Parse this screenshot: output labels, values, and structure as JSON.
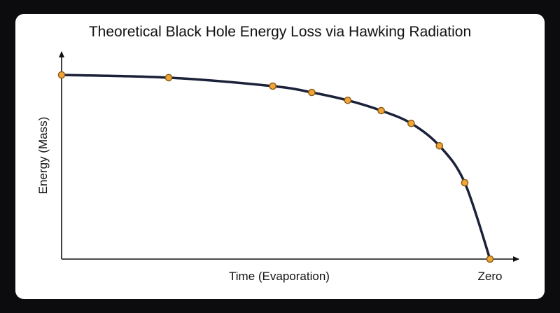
{
  "chart_data": {
    "type": "line",
    "title": "Theoretical Black Hole Energy Loss via Hawking Radiation",
    "xlabel": "Time (Evaporation)",
    "ylabel": "Energy (Mass)",
    "x_end_label": "Zero",
    "x_ticks": false,
    "y_ticks": false,
    "grid": false,
    "xlim": [
      0,
      100
    ],
    "ylim": [
      0,
      100
    ],
    "series": [
      {
        "x": [
          0,
          25,
          49.3,
          58.4,
          66.8,
          74.6,
          81.6,
          88.2,
          94.1,
          100
        ],
        "y": [
          100,
          98.5,
          93.9,
          90.5,
          86.2,
          80.6,
          73.7,
          61.5,
          41.5,
          0
        ]
      }
    ],
    "colors": {
      "line": "#1a2138",
      "marker_fill": "#f0a53a",
      "marker_stroke": "#8a5a10",
      "axis": "#111111"
    }
  }
}
